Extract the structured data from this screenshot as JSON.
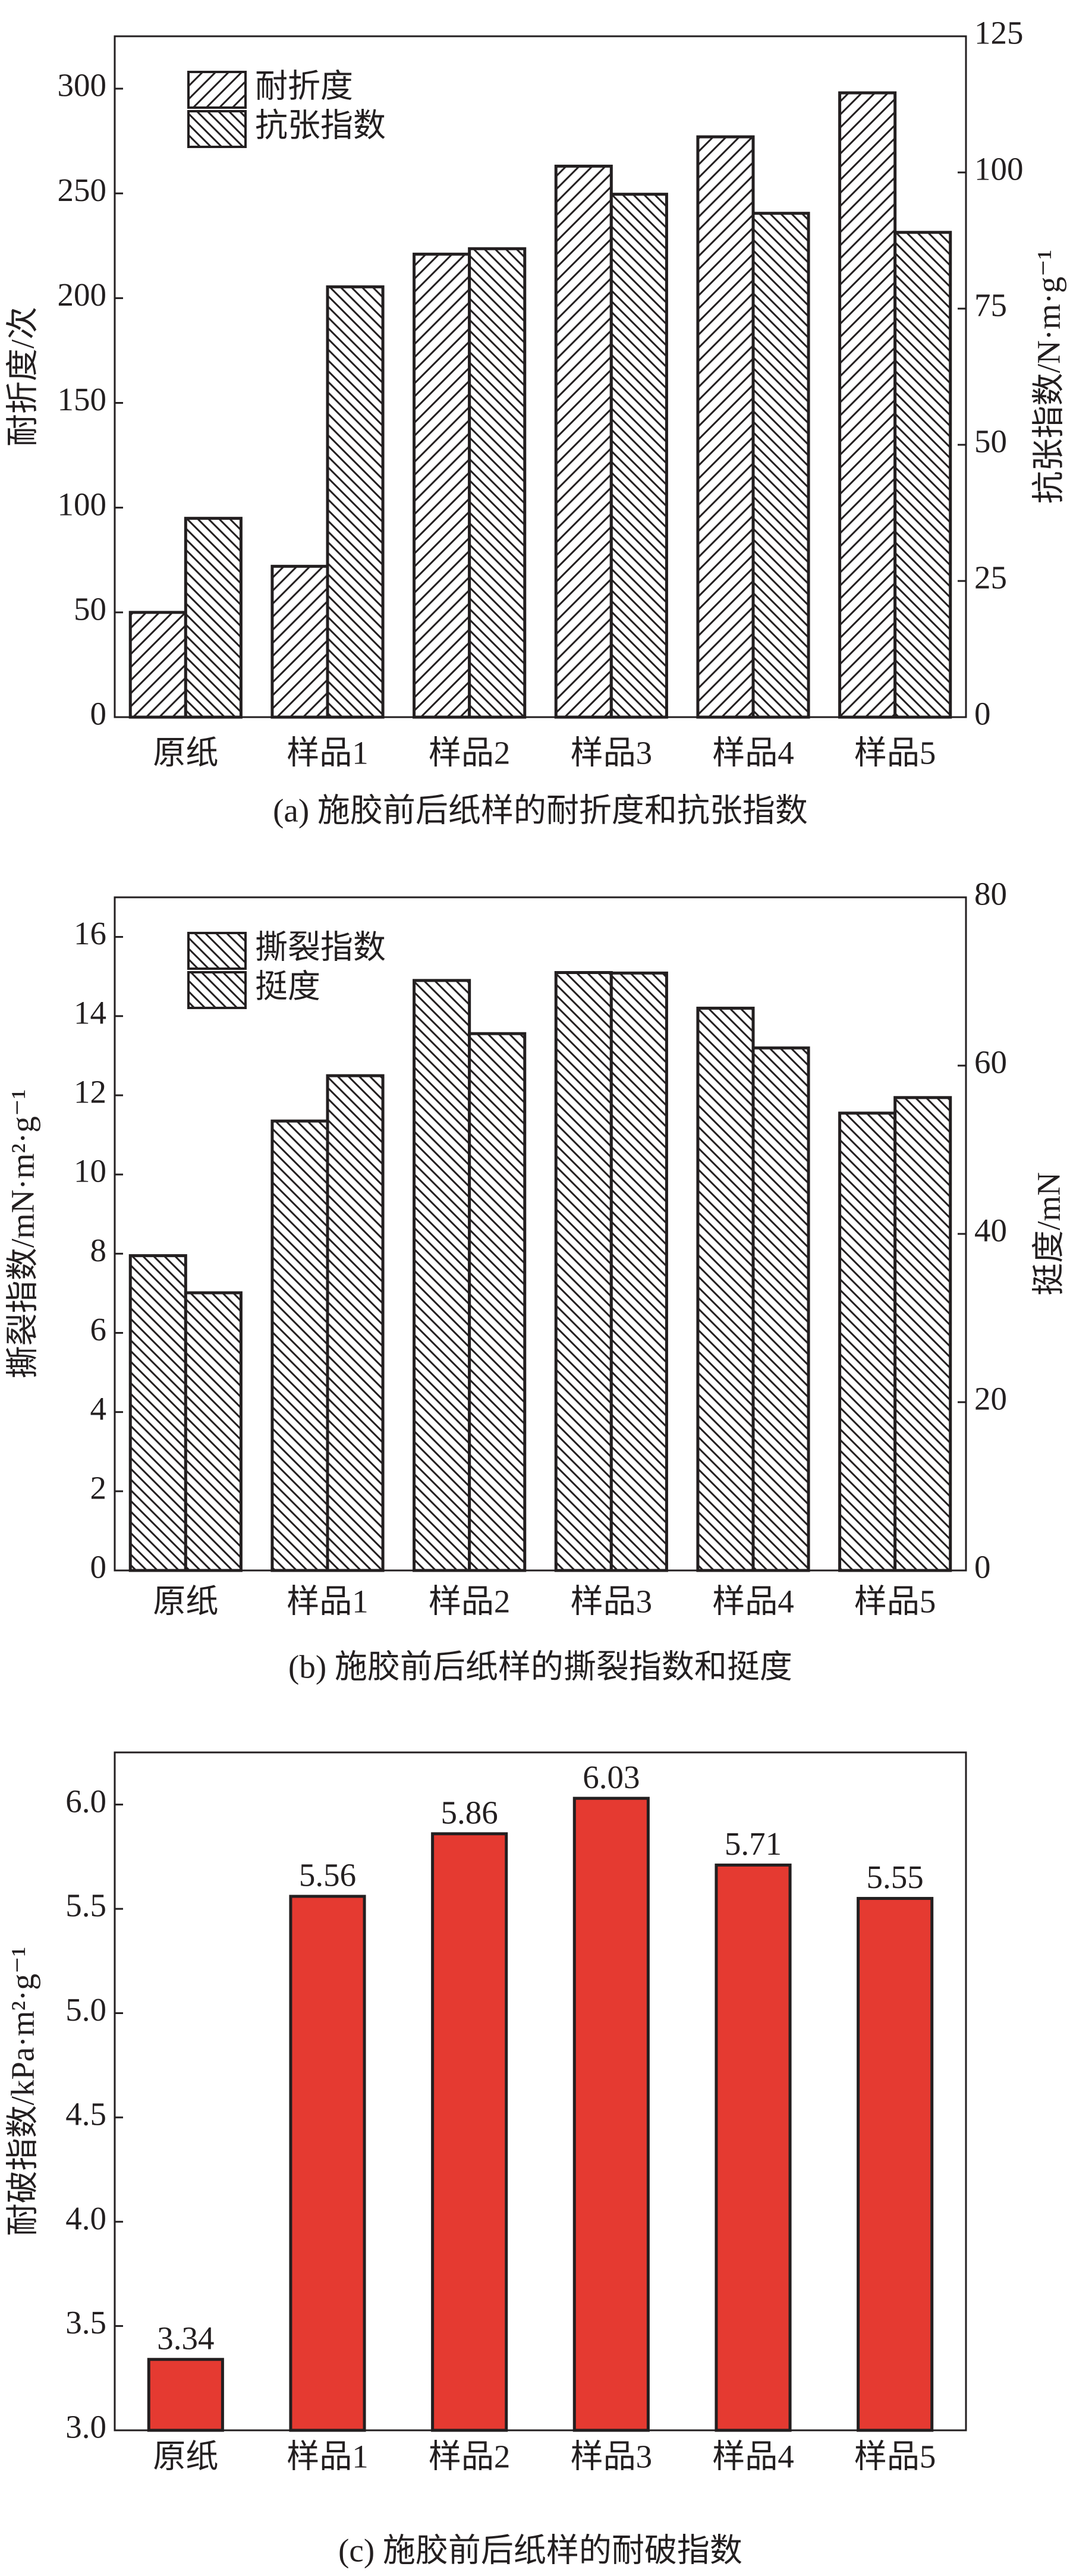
{
  "chart_data": [
    {
      "type": "bar",
      "title": "(a) 施胶前后纸样的耐折度和抗张指数",
      "categories": [
        "原纸",
        "样品1",
        "样品2",
        "样品3",
        "样品4",
        "样品5"
      ],
      "ylabel": "耐折度/次",
      "y2label": "抗张指数/N·m·g⁻¹",
      "ylim": [
        0,
        325
      ],
      "yticks": [
        0,
        50,
        100,
        150,
        200,
        250,
        300
      ],
      "y2lim": [
        0,
        125
      ],
      "y2ticks": [
        0,
        25,
        50,
        75,
        100,
        125
      ],
      "legend": "upper left",
      "series": [
        {
          "name": "耐折度",
          "color": "#231f20",
          "hatch": "/",
          "values": [
            50,
            72,
            221,
            263,
            277,
            298
          ]
        },
        {
          "name": "抗张指数",
          "color": "#231f20",
          "hatch": "\\",
          "axis": "y2",
          "values": [
            36.5,
            79,
            86,
            96,
            92.5,
            89
          ]
        }
      ]
    },
    {
      "type": "bar",
      "title": "(b) 施胶前后纸样的撕裂指数和挺度",
      "categories": [
        "原纸",
        "样品1",
        "样品2",
        "样品3",
        "样品4",
        "样品5"
      ],
      "ylabel": "撕裂指数/mN·m²·g⁻¹",
      "y2label": "挺度/mN",
      "ylim": [
        0,
        17
      ],
      "yticks": [
        0,
        2,
        4,
        6,
        8,
        10,
        12,
        14,
        16
      ],
      "y2lim": [
        0,
        80
      ],
      "y2ticks": [
        0,
        20,
        40,
        60,
        80
      ],
      "legend": "upper left",
      "series": [
        {
          "name": "撕裂指数",
          "color": "#231f20",
          "hatch": "\\",
          "values": [
            7.95,
            11.35,
            14.9,
            15.1,
            14.2,
            11.55
          ]
        },
        {
          "name": "挺度",
          "color": "#231f20",
          "hatch": "\\",
          "axis": "y2",
          "values": [
            33,
            58.8,
            63.8,
            71,
            62.1,
            56.2
          ]
        }
      ]
    },
    {
      "type": "bar",
      "title": "(c) 施胶前后纸样的耐破指数",
      "categories": [
        "原纸",
        "样品1",
        "样品2",
        "样品3",
        "样品4",
        "样品5"
      ],
      "ylabel": "耐破指数/kPa·m²·g⁻¹",
      "ylim": [
        3,
        6.25
      ],
      "yticks": [
        {
          "value": 3,
          "label": "3.0"
        },
        3.5,
        {
          "value": 4,
          "label": "4.0"
        },
        4.5,
        {
          "value": 5,
          "label": "5.0"
        },
        5.5,
        {
          "value": 6,
          "label": "6.0"
        }
      ],
      "color": "#e53a31",
      "data_labels": true,
      "values": [
        3.34,
        5.56,
        5.86,
        6.03,
        5.71,
        5.55
      ]
    }
  ]
}
